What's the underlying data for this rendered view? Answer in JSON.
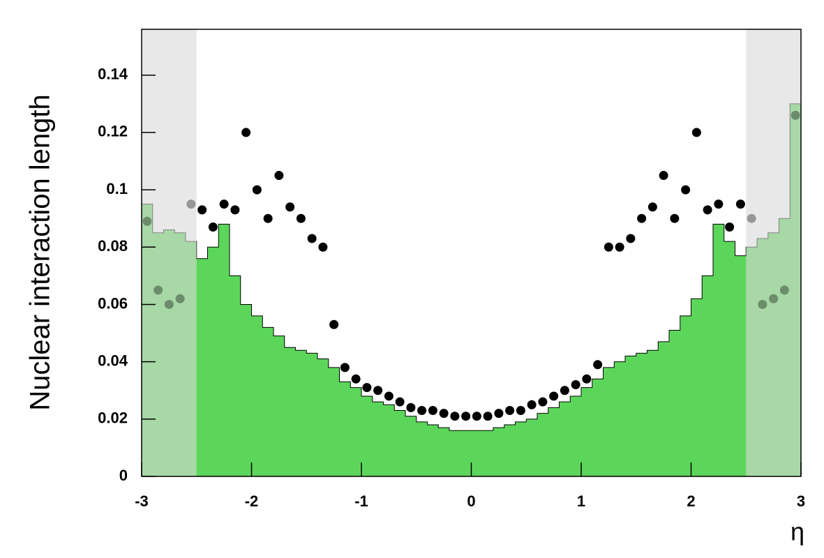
{
  "chart_data": {
    "type": "histogram",
    "xlabel": "η",
    "ylabel": "Nuclear interaction length",
    "bins": [
      -3,
      -2.9,
      -2.8,
      -2.7,
      -2.6,
      -2.5,
      -2.4,
      -2.3,
      -2.2,
      -2.1,
      -2,
      -1.9,
      -1.8,
      -1.7,
      -1.6,
      -1.5,
      -1.4,
      -1.3,
      -1.2,
      -1.1,
      -1,
      -0.9,
      -0.8,
      -0.7,
      -0.6,
      -0.5,
      -0.4,
      -0.3,
      -0.2,
      -0.1,
      0,
      0.1,
      0.2,
      0.3,
      0.4,
      0.5,
      0.6,
      0.7,
      0.8,
      0.9,
      1,
      1.1,
      1.2,
      1.3,
      1.4,
      1.5,
      1.6,
      1.7,
      1.8,
      1.9,
      2,
      2.1,
      2.2,
      2.3,
      2.4,
      2.5,
      2.6,
      2.7,
      2.8,
      2.9,
      3
    ],
    "values": [
      0.095,
      0.085,
      0.086,
      0.085,
      0.082,
      0.076,
      0.08,
      0.088,
      0.07,
      0.06,
      0.056,
      0.052,
      0.049,
      0.045,
      0.044,
      0.043,
      0.041,
      0.038,
      0.033,
      0.031,
      0.028,
      0.026,
      0.025,
      0.023,
      0.021,
      0.019,
      0.018,
      0.017,
      0.016,
      0.016,
      0.016,
      0.016,
      0.017,
      0.018,
      0.019,
      0.02,
      0.022,
      0.024,
      0.026,
      0.028,
      0.031,
      0.034,
      0.038,
      0.04,
      0.042,
      0.043,
      0.044,
      0.047,
      0.051,
      0.056,
      0.062,
      0.07,
      0.088,
      0.082,
      0.077,
      0.08,
      0.083,
      0.085,
      0.09,
      0.13
    ],
    "color": "#5cd65a",
    "points": {
      "x": [
        -2.95,
        -2.85,
        -2.75,
        -2.65,
        -2.55,
        -2.45,
        -2.35,
        -2.25,
        -2.15,
        -2.05,
        -1.95,
        -1.85,
        -1.75,
        -1.65,
        -1.55,
        -1.45,
        -1.35,
        -1.25,
        -1.15,
        -1.05,
        -0.95,
        -0.85,
        -0.75,
        -0.65,
        -0.55,
        -0.45,
        -0.35,
        -0.25,
        -0.15,
        -0.05,
        0.05,
        0.15,
        0.25,
        0.35,
        0.45,
        0.55,
        0.65,
        0.75,
        0.85,
        0.95,
        1.05,
        1.15,
        1.25,
        1.35,
        1.45,
        1.55,
        1.65,
        1.75,
        1.85,
        1.95,
        2.05,
        2.15,
        2.25,
        2.35,
        2.45,
        2.55,
        2.65,
        2.75,
        2.85,
        2.95
      ],
      "values": [
        0.089,
        0.065,
        0.06,
        0.062,
        0.095,
        0.093,
        0.087,
        0.095,
        0.093,
        0.12,
        0.1,
        0.09,
        0.105,
        0.094,
        0.09,
        0.083,
        0.08,
        0.053,
        0.038,
        0.034,
        0.031,
        0.03,
        0.028,
        0.026,
        0.024,
        0.023,
        0.023,
        0.022,
        0.021,
        0.021,
        0.021,
        0.021,
        0.022,
        0.023,
        0.023,
        0.025,
        0.026,
        0.028,
        0.03,
        0.032,
        0.034,
        0.039,
        0.08,
        0.08,
        0.083,
        0.09,
        0.094,
        0.105,
        0.09,
        0.1,
        0.12,
        0.093,
        0.095,
        0.087,
        0.095,
        0.09,
        0.06,
        0.062,
        0.065,
        0.126
      ],
      "color": "#000000"
    },
    "shaded_regions": [
      [
        -3,
        -2.5
      ],
      [
        2.5,
        3
      ]
    ],
    "shade_color": "#d9d9d9",
    "xlim": [
      -3,
      3
    ],
    "ylim": [
      0,
      0.156
    ],
    "xticks": [
      -3,
      -2,
      -1,
      0,
      1,
      2,
      3
    ],
    "yticks": [
      0,
      0.02,
      0.04,
      0.06,
      0.08,
      0.1,
      0.12,
      0.14
    ]
  }
}
